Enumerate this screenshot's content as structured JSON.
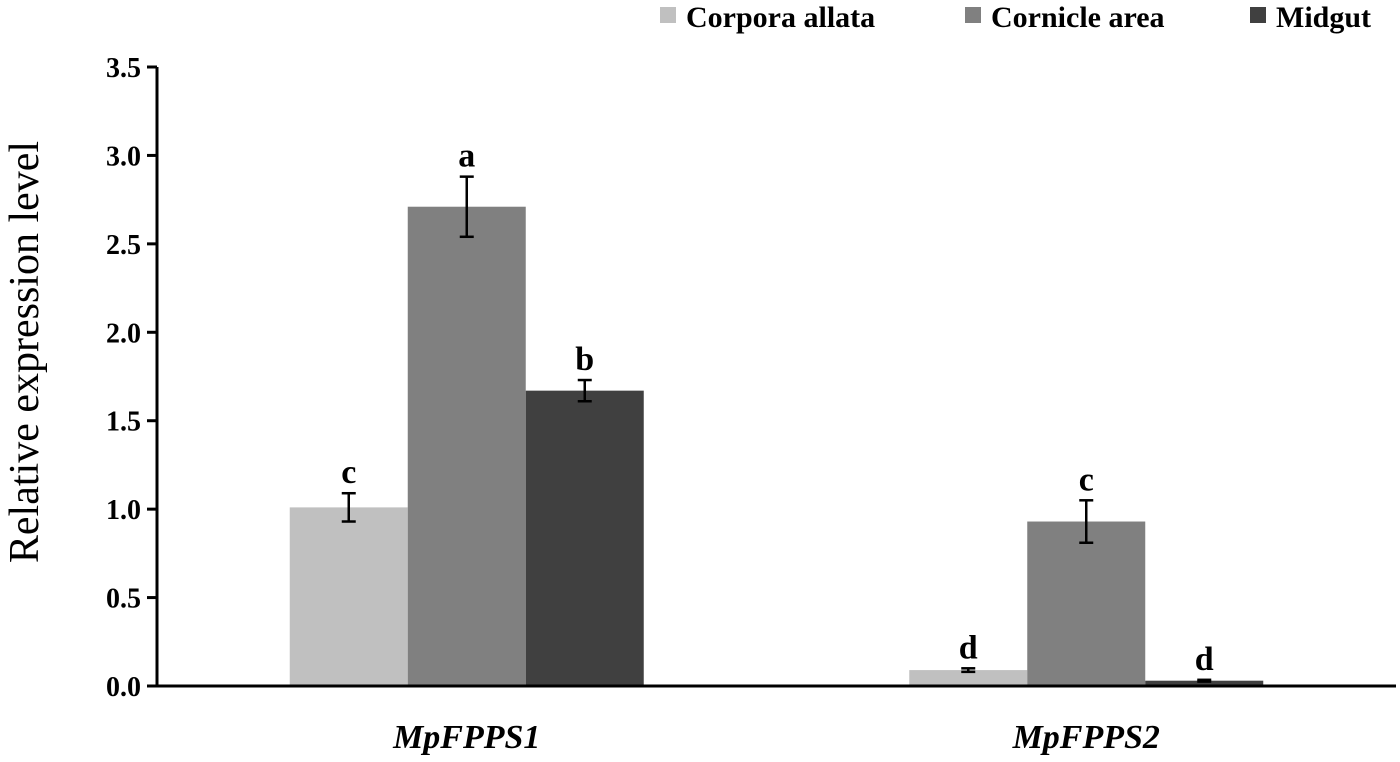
{
  "chart_data": {
    "type": "bar",
    "categories": [
      "MpFPPS1",
      "MpFPPS2"
    ],
    "series": [
      {
        "name": "Corpora allata",
        "color": "#c0c0c0",
        "values": [
          1.01,
          0.09
        ],
        "errors": [
          0.08,
          0.01
        ],
        "labels": [
          "c",
          "d"
        ]
      },
      {
        "name": "Cornicle area",
        "color": "#808080",
        "values": [
          2.71,
          0.93
        ],
        "errors": [
          0.17,
          0.12
        ],
        "labels": [
          "a",
          "c"
        ]
      },
      {
        "name": "Midgut",
        "color": "#404040",
        "values": [
          1.67,
          0.03
        ],
        "errors": [
          0.06,
          0.005
        ],
        "labels": [
          "b",
          "d"
        ]
      }
    ],
    "ylabel": "Relative expression level",
    "ylim": [
      0,
      3.5
    ],
    "yticks": [
      "0.0",
      "0.5",
      "1.0",
      "1.5",
      "2.0",
      "2.5",
      "3.0",
      "3.5"
    ],
    "grid": false,
    "legend_position": "top-right"
  }
}
